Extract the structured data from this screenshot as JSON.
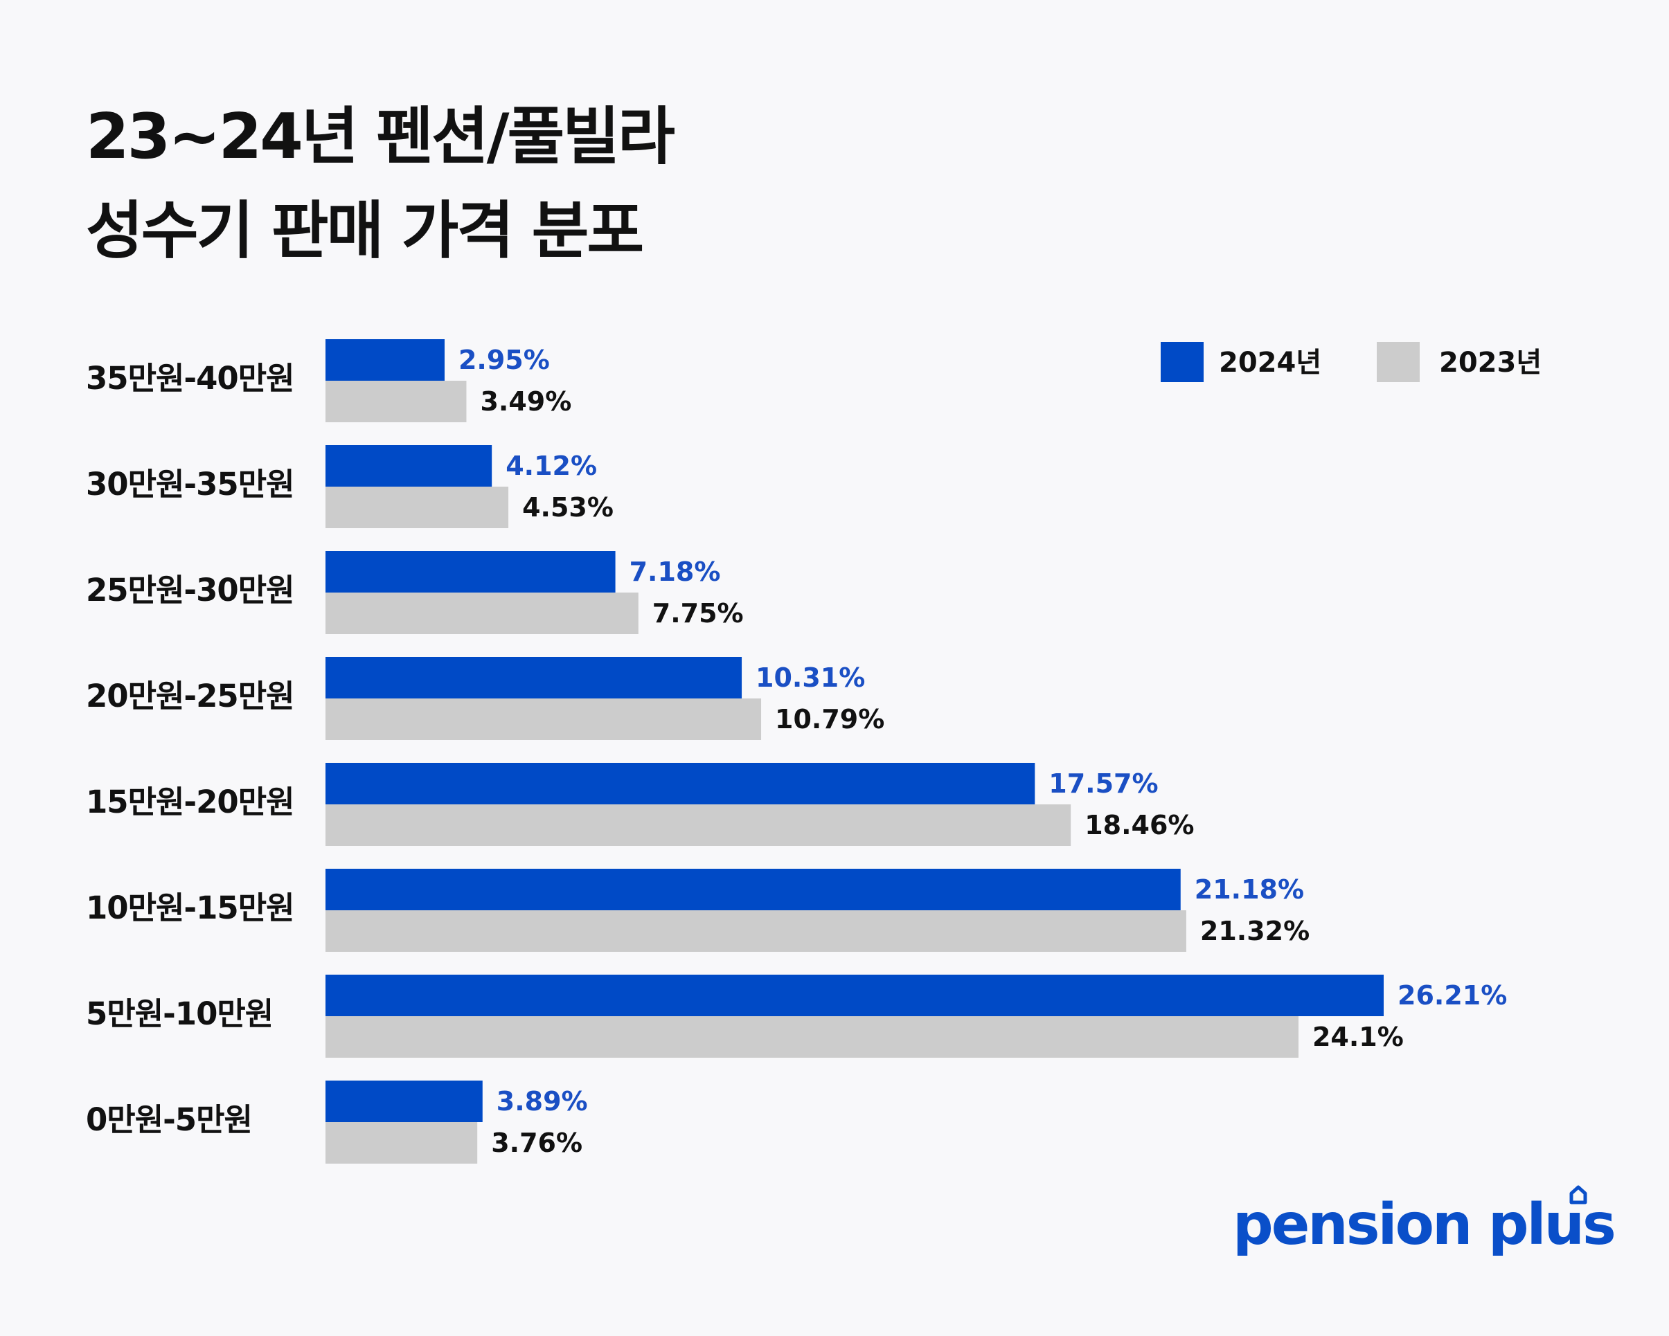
{
  "title": {
    "line1": "23~24년 펜션/풀빌라",
    "line2": "성수기 판매 가격 분포"
  },
  "colors": {
    "series_2024": "#004ac6",
    "series_2023": "#cccccc",
    "label_2024": "#1a4fc4",
    "label_2023": "#111111",
    "background": "#f8f8fa"
  },
  "brand": {
    "name": "pension plus",
    "mark_icon": "house-icon"
  },
  "chart_data": {
    "type": "bar",
    "orientation": "horizontal",
    "categories": [
      "35만원-40만원",
      "30만원-35만원",
      "25만원-30만원",
      "20만원-25만원",
      "15만원-20만원",
      "10만원-15만원",
      "5만원-10만원",
      "0만원-5만원"
    ],
    "series": [
      {
        "name": "2024년",
        "values": [
          2.95,
          4.12,
          7.18,
          10.31,
          17.57,
          21.18,
          26.21,
          3.89
        ],
        "labels": [
          "2.95%",
          "4.12%",
          "7.18%",
          "10.31%",
          "17.57%",
          "21.18%",
          "26.21%",
          "3.89%"
        ]
      },
      {
        "name": "2023년",
        "values": [
          3.49,
          4.53,
          7.75,
          10.79,
          18.46,
          21.32,
          24.1,
          3.76
        ],
        "labels": [
          "3.49%",
          "4.53%",
          "7.75%",
          "10.79%",
          "18.46%",
          "21.32%",
          "24.1%",
          "3.76%"
        ]
      }
    ],
    "legend_position": "top-right",
    "grid": false,
    "xlim": [
      0,
      26.21
    ]
  }
}
